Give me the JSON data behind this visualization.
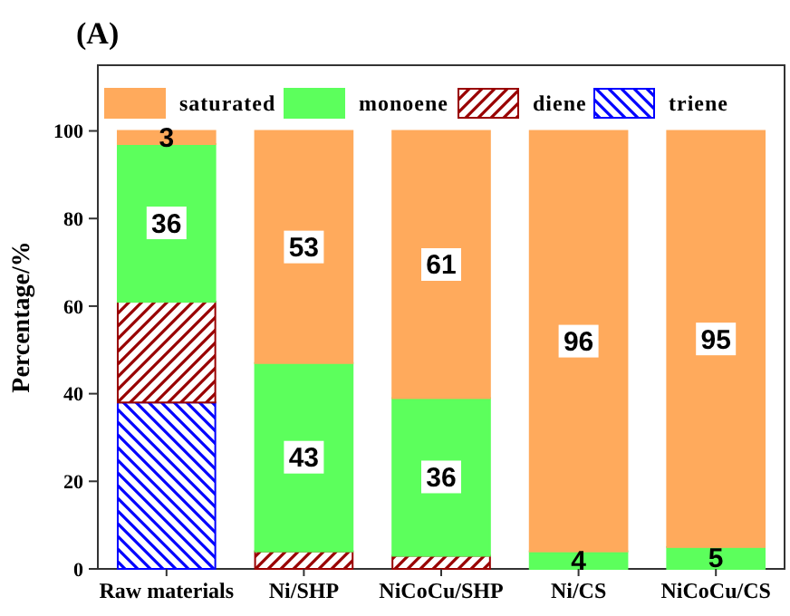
{
  "chart_data": {
    "type": "bar",
    "title": "(A)",
    "ylabel": "Percentage/%",
    "stacked": true,
    "categories": [
      "Raw materials",
      "Ni/SHP",
      "NiCoCu/SHP",
      "Ni/CS",
      "NiCoCu/CS"
    ],
    "series": [
      {
        "name": "triene",
        "color": "#0000ff",
        "values": [
          38,
          0,
          0,
          0,
          0
        ]
      },
      {
        "name": "diene",
        "color": "#990000",
        "values": [
          23,
          4,
          3,
          0,
          0
        ]
      },
      {
        "name": "monoene",
        "color": "#5cff5c",
        "values": [
          36,
          43,
          36,
          4,
          5
        ],
        "value_labels": [
          "36",
          "43",
          "36",
          "4",
          "5"
        ]
      },
      {
        "name": "saturated",
        "color": "#ffaa5c",
        "values": [
          3,
          53,
          61,
          96,
          95
        ],
        "value_labels": [
          "3",
          "53",
          "61",
          "96",
          "95"
        ]
      }
    ],
    "ylim": [
      0,
      115
    ],
    "yticks": [
      0,
      20,
      40,
      60,
      80,
      100
    ],
    "grid": false,
    "legend": "top"
  }
}
